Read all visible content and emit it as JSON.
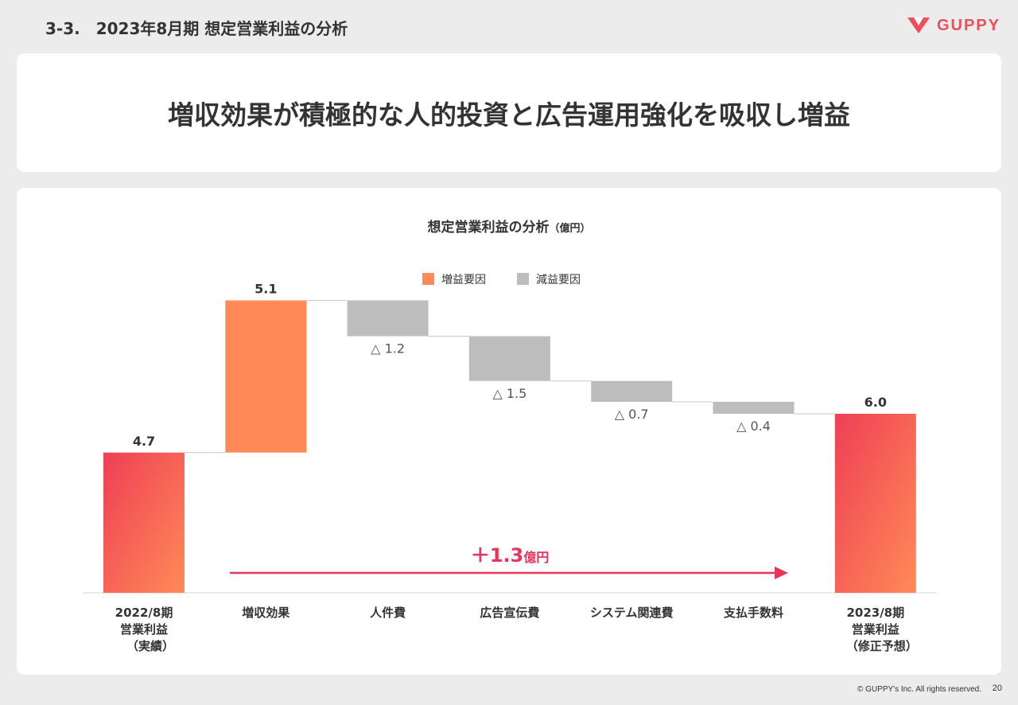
{
  "header": {
    "section_title": "3-3.　2023年8月期 想定営業利益の分析",
    "logo_text": "GUPPY",
    "brand_color": "#ee4d5a"
  },
  "headline": "増収効果が積極的な人的投資と広告運用強化を吸収し増益",
  "chart_data": {
    "type": "waterfall",
    "title": "想定営業利益の分析",
    "unit_label": "（億円）",
    "legend": [
      {
        "label": "増益要因",
        "color": "#ff8a57"
      },
      {
        "label": "減益要因",
        "color": "#bdbdbd"
      }
    ],
    "categories": [
      [
        "2022/8期",
        "営業利益",
        "（実績）"
      ],
      [
        "増収効果"
      ],
      [
        "人件費"
      ],
      [
        "広告宣伝費"
      ],
      [
        "システム関連費"
      ],
      [
        "支払手数料"
      ],
      [
        "2023/8期",
        "営業利益",
        "（修正予想）"
      ]
    ],
    "steps": [
      {
        "kind": "total",
        "value": 4.7,
        "label": "4.7"
      },
      {
        "kind": "increase",
        "value": 5.1,
        "label": "5.1"
      },
      {
        "kind": "decrease",
        "value": -1.2,
        "label": "△ 1.2"
      },
      {
        "kind": "decrease",
        "value": -1.5,
        "label": "△ 1.5"
      },
      {
        "kind": "decrease",
        "value": -0.7,
        "label": "△ 0.7"
      },
      {
        "kind": "decrease",
        "value": -0.4,
        "label": "△ 0.4"
      },
      {
        "kind": "total",
        "value": 6.0,
        "label": "6.0"
      }
    ],
    "annotation": {
      "value_text": "＋1.3",
      "unit_text": "億円",
      "color": "#e8365a"
    },
    "ylim": [
      0,
      10.0
    ],
    "colors": {
      "total_start": "#ef3f56",
      "total_end": "#ff8a57",
      "increase": "#ff8a57",
      "decrease": "#bdbdbd"
    }
  },
  "footer": {
    "copyright": "© GUPPY's Inc. All rights reserved.",
    "page_number": "20"
  }
}
